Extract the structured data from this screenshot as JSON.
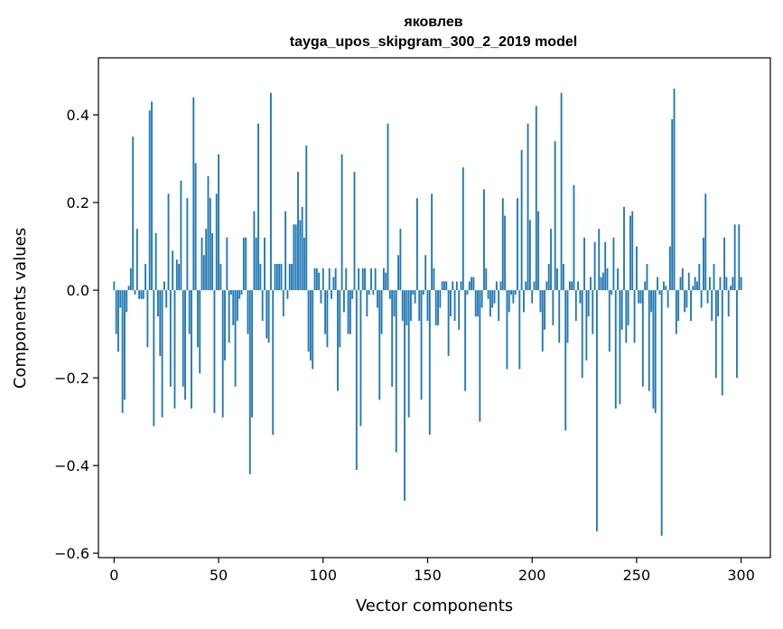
{
  "chart_data": {
    "type": "bar",
    "title": "яковлев",
    "subtitle": "tayga_upos_skipgram_300_2_2019 model",
    "xlabel": "Vector components",
    "ylabel": "Components values",
    "xlim": [
      -7.5,
      314
    ],
    "ylim": [
      -0.61,
      0.53
    ],
    "xticks": [
      0,
      50,
      100,
      150,
      200,
      250,
      300
    ],
    "xtick_labels": [
      "0",
      "50",
      "100",
      "150",
      "200",
      "250",
      "300"
    ],
    "yticks": [
      -0.6,
      -0.4,
      -0.2,
      0.0,
      0.2,
      0.4
    ],
    "ytick_labels": [
      "−0.6",
      "−0.4",
      "−0.2",
      "0.0",
      "0.2",
      "0.4"
    ],
    "grid": false,
    "bar_color": "#1f77b4",
    "x_start": 0,
    "values": [
      0.02,
      -0.1,
      -0.14,
      -0.04,
      -0.28,
      -0.25,
      -0.05,
      0.01,
      0.05,
      0.35,
      -0.01,
      0.14,
      -0.02,
      -0.02,
      -0.02,
      0.06,
      -0.13,
      0.41,
      0.43,
      -0.31,
      0.13,
      -0.06,
      -0.15,
      -0.29,
      0.02,
      -0.04,
      0.22,
      -0.22,
      0.09,
      -0.27,
      0.07,
      0.06,
      0.25,
      -0.22,
      -0.25,
      0.21,
      -0.1,
      -0.27,
      0.44,
      0.29,
      -0.13,
      -0.19,
      0.12,
      0.08,
      0.14,
      0.26,
      0.21,
      0.13,
      -0.28,
      0.22,
      0.31,
      0.06,
      -0.29,
      -0.16,
      0.12,
      -0.12,
      -0.01,
      -0.08,
      -0.22,
      -0.07,
      -0.02,
      -0.01,
      0.12,
      0.12,
      -0.1,
      -0.42,
      -0.29,
      0.18,
      0.12,
      0.38,
      0.06,
      -0.07,
      0.12,
      -0.11,
      -0.12,
      0.45,
      -0.33,
      0.06,
      0.06,
      0.06,
      0.06,
      -0.06,
      0.18,
      -0.02,
      0.06,
      0.06,
      0.15,
      0.15,
      0.27,
      0.16,
      0.19,
      0.12,
      0.33,
      -0.14,
      -0.16,
      -0.18,
      0.05,
      0.05,
      0.04,
      -0.03,
      0.05,
      -0.1,
      -0.13,
      0.05,
      -0.02,
      0.03,
      0.05,
      -0.23,
      -0.13,
      0.31,
      -0.05,
      0.05,
      -0.1,
      -0.1,
      -0.02,
      0.27,
      -0.41,
      0.05,
      -0.31,
      0.05,
      0.05,
      -0.06,
      -0.01,
      0.05,
      -0.01,
      0.05,
      -0.04,
      -0.25,
      -0.1,
      0.05,
      0.04,
      0.38,
      -0.02,
      -0.22,
      -0.06,
      -0.37,
      0.08,
      0.14,
      -0.07,
      -0.48,
      -0.08,
      -0.29,
      -0.07,
      -0.01,
      -0.03,
      0.21,
      -0.07,
      -0.25,
      -0.01,
      0.08,
      -0.07,
      -0.33,
      0.22,
      0.05,
      -0.08,
      -0.08,
      -0.04,
      0.02,
      0.02,
      0.02,
      -0.15,
      -0.06,
      0.02,
      -0.07,
      0.02,
      -0.09,
      0.02,
      0.28,
      -0.23,
      -0.01,
      0.02,
      0.03,
      0.03,
      -0.06,
      -0.06,
      -0.3,
      -0.04,
      0.23,
      0.05,
      -0.02,
      -0.06,
      -0.04,
      -0.03,
      0.02,
      -0.07,
      0.02,
      0.21,
      0.17,
      -0.18,
      -0.05,
      -0.01,
      -0.03,
      -0.01,
      0.21,
      -0.18,
      0.32,
      -0.05,
      0.02,
      0.38,
      0.16,
      -0.03,
      0.02,
      0.42,
      0.18,
      -0.05,
      -0.14,
      -0.09,
      0.02,
      0.06,
      0.14,
      -0.08,
      0.34,
      0.05,
      -0.12,
      0.45,
      0.06,
      -0.32,
      -0.12,
      0.02,
      0.02,
      0.24,
      -0.07,
      0.02,
      -0.03,
      -0.2,
      0.12,
      -0.16,
      -0.06,
      0.03,
      -0.1,
      0.11,
      -0.55,
      0.14,
      0.03,
      0.04,
      0.11,
      0.05,
      -0.14,
      -0.01,
      0.12,
      -0.27,
      0.05,
      -0.26,
      -0.09,
      0.19,
      -0.12,
      -0.08,
      0.17,
      0.18,
      -0.12,
      0.1,
      -0.03,
      -0.03,
      -0.22,
      0.02,
      0.06,
      -0.23,
      -0.05,
      -0.27,
      -0.28,
      0.03,
      -0.01,
      -0.56,
      0.02,
      0.01,
      -0.04,
      0.1,
      0.39,
      0.46,
      -0.1,
      -0.07,
      0.03,
      0.05,
      -0.05,
      -0.04,
      0.04,
      -0.07,
      0.01,
      0.03,
      0.02,
      0.06,
      -0.04,
      0.12,
      0.22,
      -0.03,
      0.03,
      -0.07,
      0.06,
      -0.2,
      -0.06,
      0.03,
      -0.24,
      0.12,
      0.03,
      -0.06,
      0.01,
      0.03,
      0.15,
      -0.2,
      0.15,
      0.03
    ]
  }
}
